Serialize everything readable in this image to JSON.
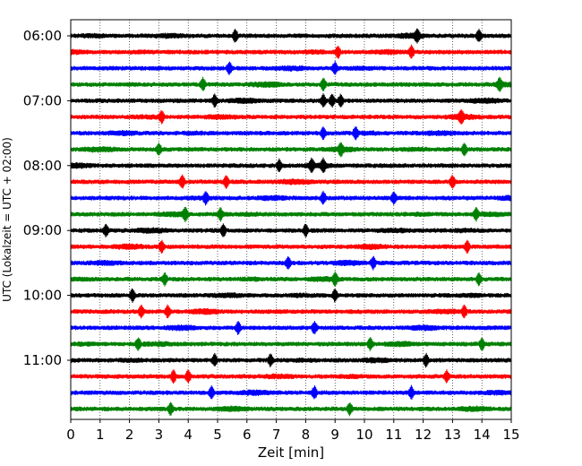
{
  "chart_data": {
    "type": "line",
    "title": "",
    "xlabel": "Zeit  [min]",
    "ylabel": "UTC (Lokalzeit = UTC + 02:00)",
    "xlim": [
      0,
      15
    ],
    "x_ticks": [
      "0",
      "1",
      "2",
      "3",
      "4",
      "5",
      "6",
      "7",
      "8",
      "9",
      "10",
      "11",
      "12",
      "13",
      "14",
      "15"
    ],
    "y_ticks": [
      "06:00",
      "07:00",
      "08:00",
      "09:00",
      "10:00",
      "11:00"
    ],
    "grid": "vertical dotted at each minute",
    "trace_interval_min": 15,
    "start_time": "06:00",
    "trace_colors": [
      "#000000",
      "#ff0000",
      "#0000ff",
      "#008000"
    ],
    "traces": [
      {
        "start": "06:00",
        "spikes_min": [
          5.6,
          11.8,
          13.9
        ]
      },
      {
        "start": "06:15",
        "spikes_min": [
          9.1,
          11.6
        ]
      },
      {
        "start": "06:30",
        "spikes_min": [
          5.4,
          9.0
        ]
      },
      {
        "start": "06:45",
        "spikes_min": [
          4.5,
          8.6,
          14.6
        ]
      },
      {
        "start": "07:00",
        "spikes_min": [
          4.9,
          8.6,
          8.9,
          9.2
        ]
      },
      {
        "start": "07:15",
        "spikes_min": [
          3.1,
          13.3
        ]
      },
      {
        "start": "07:30",
        "spikes_min": [
          8.6,
          9.7
        ]
      },
      {
        "start": "07:45",
        "spikes_min": [
          3.0,
          9.2,
          13.4
        ]
      },
      {
        "start": "08:00",
        "spikes_min": [
          7.1,
          8.2,
          8.6
        ]
      },
      {
        "start": "08:15",
        "spikes_min": [
          3.8,
          5.3,
          13.0
        ]
      },
      {
        "start": "08:30",
        "spikes_min": [
          4.6,
          8.6,
          11.0
        ]
      },
      {
        "start": "08:45",
        "spikes_min": [
          3.9,
          5.1,
          13.8
        ]
      },
      {
        "start": "09:00",
        "spikes_min": [
          1.2,
          5.2,
          8.0
        ]
      },
      {
        "start": "09:15",
        "spikes_min": [
          3.1,
          13.5
        ]
      },
      {
        "start": "09:30",
        "spikes_min": [
          7.4,
          10.3
        ]
      },
      {
        "start": "09:45",
        "spikes_min": [
          3.2,
          9.0,
          13.9
        ]
      },
      {
        "start": "10:00",
        "spikes_min": [
          2.1,
          9.0
        ]
      },
      {
        "start": "10:15",
        "spikes_min": [
          2.4,
          3.3,
          13.4
        ]
      },
      {
        "start": "10:30",
        "spikes_min": [
          5.7,
          8.3
        ]
      },
      {
        "start": "10:45",
        "spikes_min": [
          2.3,
          10.2,
          14.0
        ]
      },
      {
        "start": "11:00",
        "spikes_min": [
          4.9,
          6.8,
          12.1
        ]
      },
      {
        "start": "11:15",
        "spikes_min": [
          3.5,
          4.0,
          12.8
        ]
      },
      {
        "start": "11:30",
        "spikes_min": [
          4.8,
          8.3,
          11.6
        ]
      },
      {
        "start": "11:45",
        "spikes_min": [
          3.4,
          9.5
        ]
      }
    ]
  }
}
